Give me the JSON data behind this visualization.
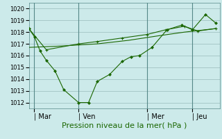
{
  "bg_color": "#cceaea",
  "grid_color": "#99bbbb",
  "line_color": "#1a6600",
  "marker_color": "#1a6600",
  "xlabel": "Pression niveau de la mer( hPa )",
  "ylim": [
    1011.5,
    1020.5
  ],
  "yticks": [
    1012,
    1013,
    1014,
    1015,
    1016,
    1017,
    1018,
    1019,
    1020
  ],
  "xtick_labels": [
    "| Mar",
    "| Ven",
    "| Mer",
    "| Jeu"
  ],
  "xtick_positions": [
    16,
    88,
    198,
    271
  ],
  "xmin": 8,
  "xmax": 315,
  "line1_x": [
    8,
    17,
    26,
    36,
    50,
    64,
    88,
    104,
    118,
    138,
    158,
    172,
    186,
    206,
    230,
    254,
    271,
    292,
    308
  ],
  "line1_y": [
    1018.3,
    1017.6,
    1016.4,
    1015.6,
    1014.7,
    1013.1,
    1012.0,
    1012.0,
    1013.8,
    1014.4,
    1015.5,
    1015.9,
    1016.0,
    1016.7,
    1018.2,
    1018.6,
    1018.2,
    1019.5,
    1018.8
  ],
  "line2_x": [
    8,
    36,
    88,
    118,
    158,
    198,
    228,
    258,
    280,
    308
  ],
  "line2_y": [
    1018.3,
    1016.5,
    1017.0,
    1017.2,
    1017.5,
    1017.8,
    1018.2,
    1018.5,
    1018.1,
    1018.3
  ],
  "line3_x": [
    8,
    54,
    118,
    168,
    218,
    258,
    308
  ],
  "line3_y": [
    1016.7,
    1016.8,
    1017.0,
    1017.3,
    1017.7,
    1018.0,
    1018.3
  ],
  "vline_positions": [
    16,
    88,
    198,
    271
  ],
  "ytick_fontsize": 6,
  "xtick_fontsize": 7,
  "xlabel_fontsize": 8
}
